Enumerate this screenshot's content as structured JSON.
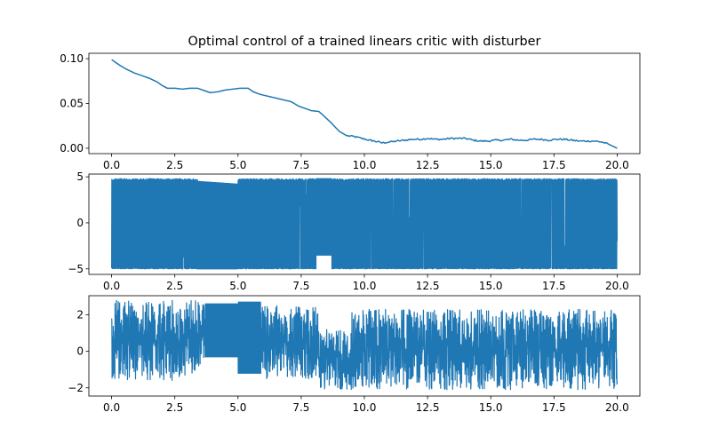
{
  "figure": {
    "title": "Optimal control of a trained linears critic with disturber"
  },
  "chart_data": [
    {
      "type": "line",
      "title": "Optimal control of a trained linears critic with disturber",
      "xlabel": "",
      "ylabel": "",
      "xlim": [
        -0.9,
        20.9
      ],
      "ylim": [
        -0.006,
        0.106
      ],
      "xticks": [
        0.0,
        2.5,
        5.0,
        7.5,
        10.0,
        12.5,
        15.0,
        17.5,
        20.0
      ],
      "xtick_labels": [
        "0.0",
        "2.5",
        "5.0",
        "7.5",
        "10.0",
        "12.5",
        "15.0",
        "17.5",
        "20.0"
      ],
      "yticks": [
        0.0,
        0.05,
        0.1
      ],
      "ytick_labels": [
        "0.00",
        "0.05",
        "0.10"
      ],
      "color": "#1f77b4",
      "series": [
        {
          "x": [
            0.0,
            0.3,
            0.6,
            0.9,
            1.2,
            1.5,
            1.8,
            2.0,
            2.2,
            2.5,
            2.8,
            3.1,
            3.4,
            3.6,
            3.9,
            4.2,
            4.5,
            4.8,
            5.1,
            5.4,
            5.6,
            5.9,
            6.2,
            6.5,
            6.8,
            7.1,
            7.4,
            7.6,
            7.9,
            8.2,
            8.4,
            8.7,
            9.0,
            9.3,
            9.6,
            9.9,
            10.2,
            10.4,
            10.7,
            11.0,
            11.3,
            11.6,
            11.9,
            12.2,
            12.5,
            12.8,
            13.1,
            13.4,
            13.7,
            14.0,
            14.3,
            14.6,
            14.9,
            15.2,
            15.5,
            15.8,
            16.1,
            16.4,
            16.7,
            17.0,
            17.3,
            17.6,
            17.9,
            18.2,
            18.5,
            18.8,
            19.1,
            19.4,
            19.7,
            20.0
          ],
          "y": [
            0.099,
            0.093,
            0.088,
            0.084,
            0.081,
            0.078,
            0.074,
            0.07,
            0.067,
            0.067,
            0.066,
            0.067,
            0.067,
            0.065,
            0.062,
            0.063,
            0.065,
            0.066,
            0.067,
            0.067,
            0.063,
            0.06,
            0.058,
            0.056,
            0.054,
            0.052,
            0.047,
            0.045,
            0.042,
            0.041,
            0.036,
            0.028,
            0.019,
            0.014,
            0.013,
            0.011,
            0.009,
            0.008,
            0.006,
            0.007,
            0.008,
            0.009,
            0.01,
            0.01,
            0.011,
            0.01,
            0.01,
            0.011,
            0.011,
            0.011,
            0.009,
            0.008,
            0.008,
            0.009,
            0.009,
            0.01,
            0.009,
            0.009,
            0.01,
            0.01,
            0.009,
            0.01,
            0.01,
            0.009,
            0.008,
            0.008,
            0.008,
            0.007,
            0.004,
            0.0
          ]
        }
      ]
    },
    {
      "type": "line",
      "title": "",
      "xlabel": "",
      "ylabel": "",
      "xlim": [
        -0.9,
        20.9
      ],
      "ylim": [
        -5.6,
        5.3
      ],
      "xticks": [
        0.0,
        2.5,
        5.0,
        7.5,
        10.0,
        12.5,
        15.0,
        17.5,
        20.0
      ],
      "xtick_labels": [
        "0.0",
        "2.5",
        "5.0",
        "7.5",
        "10.0",
        "12.5",
        "15.0",
        "17.5",
        "20.0"
      ],
      "yticks": [
        -5,
        0,
        5
      ],
      "ytick_labels": [
        "−5",
        "0",
        "5"
      ],
      "color": "#1f77b4",
      "signal": {
        "x_range": [
          0.0,
          20.0
        ],
        "amplitude_max": 4.8,
        "amplitude_min": -5.0,
        "end_value": -2.0,
        "flat_segments": [
          {
            "x": [
              3.4,
              5.0
            ],
            "upper": [
              4.5,
              4.2
            ],
            "lower": [
              -5.0,
              -5.0
            ]
          },
          {
            "x": [
              8.1,
              8.7
            ],
            "upper": [
              4.8,
              4.8
            ],
            "lower": [
              -3.5,
              -3.5
            ]
          }
        ]
      }
    },
    {
      "type": "line",
      "title": "",
      "xlabel": "",
      "ylabel": "",
      "xlim": [
        -0.9,
        20.9
      ],
      "ylim": [
        -2.45,
        3.05
      ],
      "xticks": [
        0.0,
        2.5,
        5.0,
        7.5,
        10.0,
        12.5,
        15.0,
        17.5,
        20.0
      ],
      "xtick_labels": [
        "0.0",
        "2.5",
        "5.0",
        "7.5",
        "10.0",
        "12.5",
        "15.0",
        "17.5",
        "20.0"
      ],
      "yticks": [
        -2,
        0,
        2
      ],
      "ytick_labels": [
        "−2",
        "0",
        "2"
      ],
      "color": "#1f77b4",
      "signal": {
        "x_range": [
          0.0,
          20.0
        ],
        "envelope": [
          {
            "x": [
              0.0,
              3.5
            ],
            "upper": 2.8,
            "lower": -1.6
          },
          {
            "x": [
              3.5,
              5.0
            ],
            "upper": 2.6,
            "lower": -0.4
          },
          {
            "x": [
              5.0,
              5.8
            ],
            "upper": 2.7,
            "lower": -1.2
          },
          {
            "x": [
              5.8,
              8.2
            ],
            "upper": 2.5,
            "lower": -1.5
          },
          {
            "x": [
              8.2,
              9.5
            ],
            "upper": 1.2,
            "lower": -2.1
          },
          {
            "x": [
              9.5,
              20.0
            ],
            "upper": 2.3,
            "lower": -2.1
          }
        ],
        "flat_segments": [
          {
            "x": [
              3.7,
              5.0
            ],
            "upper": [
              2.6,
              2.6
            ],
            "lower": [
              -0.3,
              -0.3
            ]
          },
          {
            "x": [
              5.0,
              5.9
            ],
            "upper": [
              2.7,
              2.7
            ],
            "lower": [
              -1.2,
              -1.2
            ]
          }
        ],
        "start_value": 1.8,
        "end_value": -1.6
      }
    }
  ]
}
